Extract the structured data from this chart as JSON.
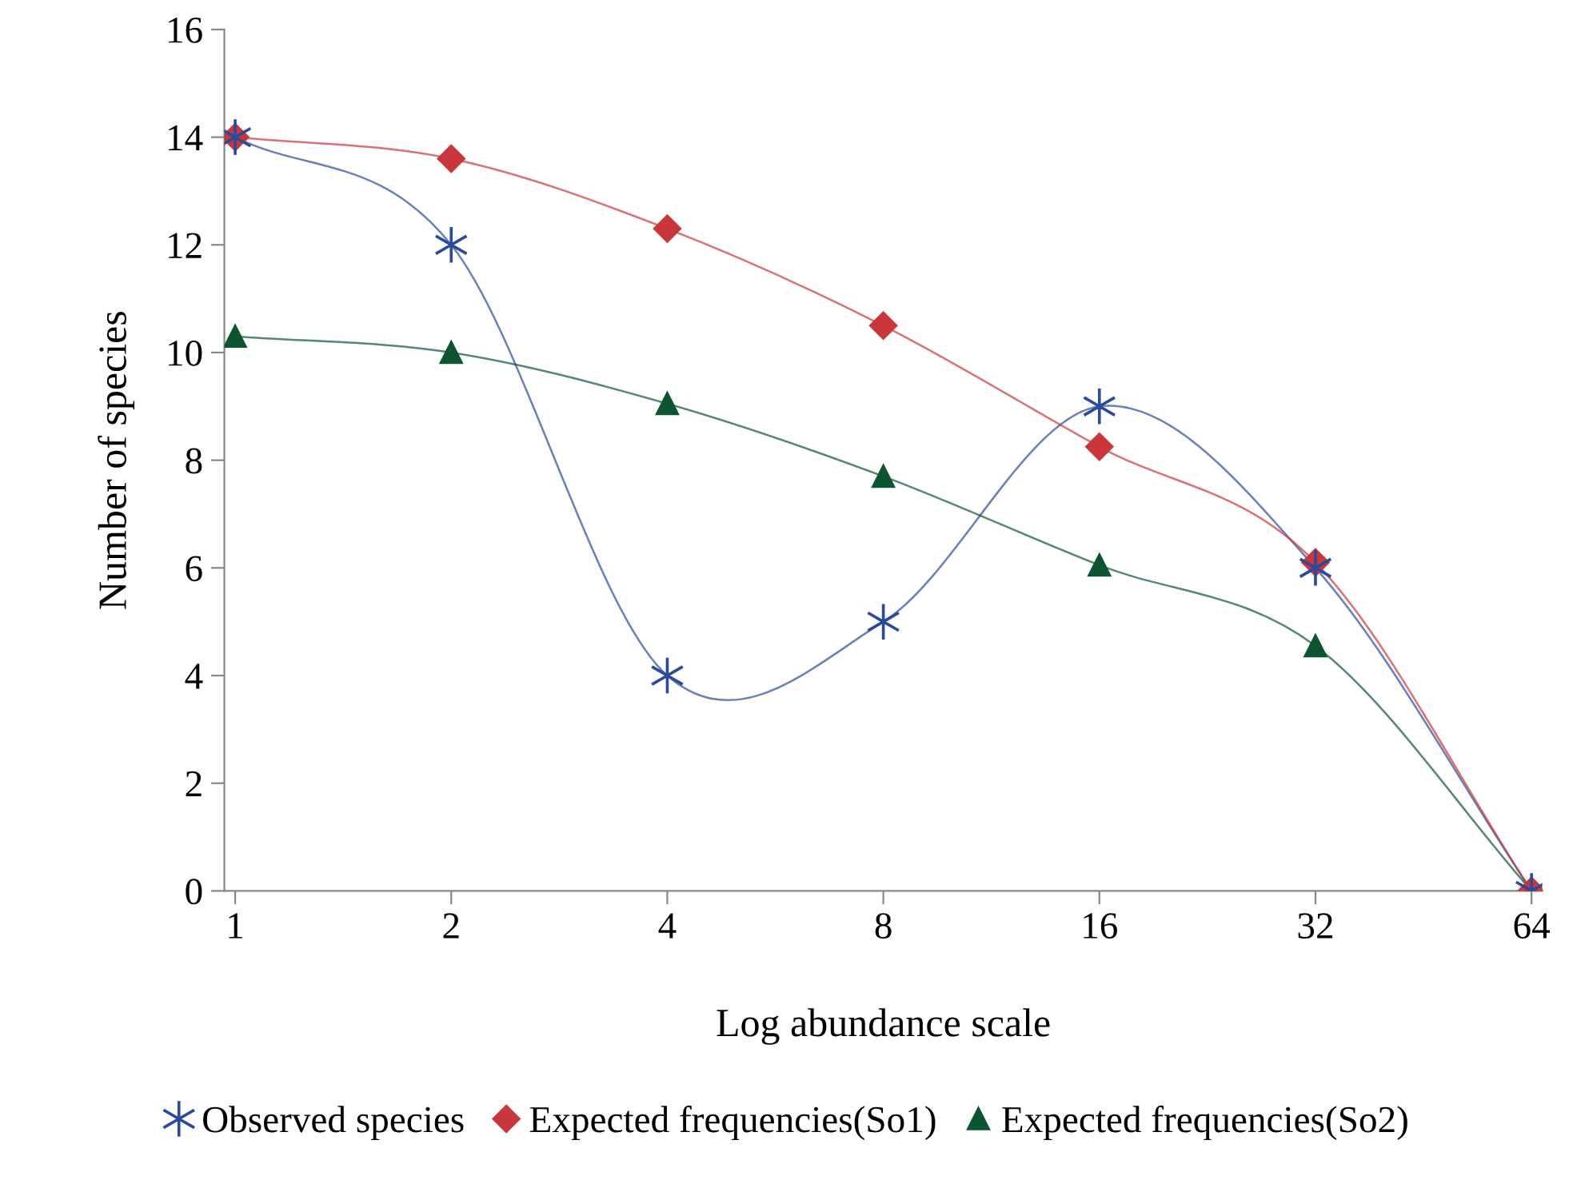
{
  "chart_data": {
    "type": "line",
    "xlabel": "Log abundance scale",
    "ylabel": "Number of species",
    "categories": [
      "1",
      "2",
      "4",
      "8",
      "16",
      "32",
      "64"
    ],
    "ylim": [
      0,
      16
    ],
    "yticks": [
      0,
      2,
      4,
      6,
      8,
      10,
      12,
      14,
      16
    ],
    "grid": false,
    "legend": "bottom",
    "line_style": "solid",
    "series": [
      {
        "name": "Observed species",
        "color": "#2b4a9a",
        "marker": "cross",
        "values": [
          14,
          12,
          4,
          5,
          9,
          6,
          0
        ]
      },
      {
        "name": "Expected frequencies(So1)",
        "color": "#c9363c",
        "marker": "diamond",
        "values": [
          14,
          13.6,
          12.3,
          10.5,
          8.25,
          6.1,
          0
        ]
      },
      {
        "name": "Expected frequencies(So2)",
        "color": "#0d5530",
        "marker": "triangle",
        "values": [
          10.3,
          10,
          9.05,
          7.7,
          6.05,
          4.55,
          0
        ]
      }
    ]
  }
}
